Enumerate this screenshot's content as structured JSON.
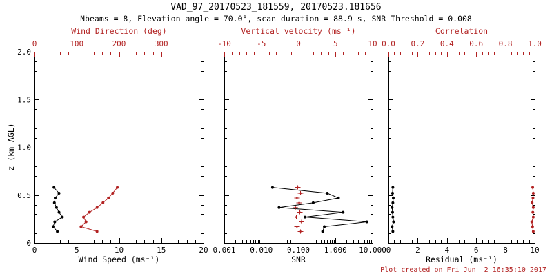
{
  "colors": {
    "accent_red": "#b22222",
    "series_black": "#000000",
    "background": "#ffffff"
  },
  "chart_data": {
    "type": "line",
    "title": "VAD_97_20170523_181559, 20170523.181656",
    "subtitle": "Nbeams = 8, Elevation angle = 70.0°, scan duration = 88.9 s, SNR Threshold = 0.008",
    "footer": "Plot created on Fri Jun  2 16:35:10 2017",
    "ylabel": "z (km AGL)",
    "ylim": [
      0,
      2.0
    ],
    "y_axis": {
      "tick_values": [
        0,
        0.5,
        1.0,
        1.5,
        2.0
      ],
      "tick_labels": [
        "0",
        "0.5",
        "1.0",
        "1.5",
        "2.0"
      ],
      "minor_step": 0.1
    },
    "z_km": [
      0.12,
      0.17,
      0.22,
      0.27,
      0.32,
      0.37,
      0.42,
      0.47,
      0.52,
      0.58
    ],
    "panels": [
      {
        "id": "wind-panel",
        "bottom_axis": {
          "label": "Wind Speed (ms⁻¹)",
          "range": [
            0,
            20
          ],
          "scale": "linear",
          "tick_values": [
            0,
            5,
            10,
            15,
            20
          ],
          "tick_labels": [
            "0",
            "5",
            "10",
            "15",
            "20"
          ]
        },
        "top_axis": {
          "label": "Wind Direction (deg)",
          "range": [
            0,
            400
          ],
          "scale": "linear",
          "tick_values": [
            0,
            100,
            200,
            300
          ],
          "tick_labels": [
            "0",
            "100",
            "200",
            "300"
          ]
        },
        "series": [
          {
            "name": "wind_speed",
            "axis": "bottom",
            "color": "#000000",
            "marker": "dot",
            "connect": true,
            "values": [
              2.7,
              2.2,
              2.4,
              3.3,
              2.9,
              2.6,
              2.35,
              2.45,
              2.9,
              2.3
            ]
          },
          {
            "name": "wind_direction",
            "axis": "top",
            "color": "#b22222",
            "marker": "dot",
            "connect": true,
            "values": [
              148,
              110,
              122,
              116,
              130,
              148,
              162,
              175,
              185,
              196
            ]
          }
        ]
      },
      {
        "id": "snr-panel",
        "bottom_axis": {
          "label": "SNR",
          "range": [
            0.001,
            10
          ],
          "scale": "log",
          "tick_values": [
            0.001,
            0.01,
            0.1,
            1,
            10
          ],
          "tick_labels": [
            "0.001",
            "0.010",
            "0.100",
            "1.000",
            "10.000"
          ]
        },
        "top_axis": {
          "label": "Vertical velocity (ms⁻¹)",
          "range": [
            -10,
            10
          ],
          "scale": "linear",
          "tick_values": [
            -10,
            -5,
            0,
            5,
            10
          ],
          "tick_labels": [
            "-10",
            "-5",
            "0",
            "5",
            "10"
          ]
        },
        "refline": {
          "axis": "top",
          "value": 0,
          "style": "dotted",
          "color": "#b22222"
        },
        "series": [
          {
            "name": "snr",
            "axis": "bottom",
            "color": "#000000",
            "marker": "dot",
            "connect": true,
            "values": [
              0.45,
              0.5,
              7.0,
              0.15,
              1.6,
              0.03,
              0.25,
              1.2,
              0.6,
              0.02
            ]
          },
          {
            "name": "vertical_velocity",
            "axis": "top",
            "color": "#b22222",
            "marker": "plus",
            "connect": false,
            "values": [
              0.3,
              -0.2,
              0.4,
              -0.3,
              0.2,
              -0.4,
              0.1,
              -0.2,
              0.3,
              -0.1
            ]
          }
        ]
      },
      {
        "id": "residual-panel",
        "bottom_axis": {
          "label": "Residual (ms⁻¹)",
          "range": [
            0,
            10
          ],
          "scale": "linear",
          "tick_values": [
            0,
            2,
            4,
            6,
            8,
            10
          ],
          "tick_labels": [
            "0",
            "2",
            "4",
            "6",
            "8",
            "10"
          ]
        },
        "top_axis": {
          "label": "Correlation",
          "range": [
            0,
            1
          ],
          "scale": "linear",
          "tick_values": [
            0,
            0.2,
            0.4,
            0.6,
            0.8,
            1.0
          ],
          "tick_labels": [
            "0.0",
            "0.2",
            "0.4",
            "0.6",
            "0.8",
            "1.0"
          ]
        },
        "series": [
          {
            "name": "residual",
            "axis": "bottom",
            "color": "#000000",
            "marker": "dot",
            "connect": true,
            "values": [
              0.3,
              0.25,
              0.35,
              0.3,
              0.28,
              0.25,
              0.3,
              0.33,
              0.28,
              0.3
            ]
          },
          {
            "name": "correlation",
            "axis": "top",
            "color": "#b22222",
            "marker": "dot",
            "connect": true,
            "values": [
              0.99,
              0.985,
              0.98,
              0.99,
              0.987,
              0.99,
              0.982,
              0.988,
              0.99,
              0.986
            ]
          }
        ]
      }
    ]
  }
}
